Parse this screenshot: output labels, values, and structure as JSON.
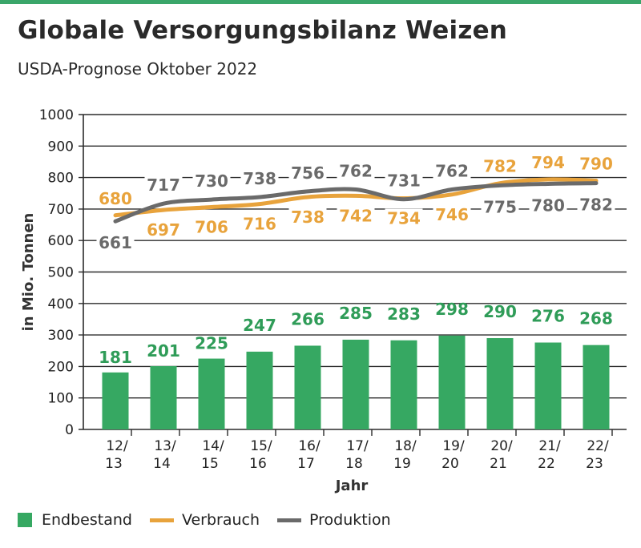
{
  "title": "Globale Versorgungsbilanz Weizen",
  "subtitle": "USDA-Prognose Oktober 2022",
  "colors": {
    "bar": "#36a862",
    "bar_label": "#2f9c58",
    "verbrauch": "#e8a33c",
    "produktion": "#6a6a6a",
    "accent": "#3aa66a"
  },
  "legend": [
    {
      "label": "Endbestand",
      "series": "endbestand",
      "kind": "bar"
    },
    {
      "label": "Verbrauch",
      "series": "verbrauch",
      "kind": "line"
    },
    {
      "label": "Produktion",
      "series": "produktion",
      "kind": "line"
    }
  ],
  "chart_data": {
    "type": "bar+line",
    "xlabel": "Jahr",
    "ylabel": "in Mio. Tonnen",
    "ylim": [
      0,
      1000
    ],
    "yticks": [
      0,
      100,
      200,
      300,
      400,
      500,
      600,
      700,
      800,
      900,
      1000
    ],
    "categories": [
      [
        "12/",
        "13"
      ],
      [
        "13/",
        "14"
      ],
      [
        "14/",
        "15"
      ],
      [
        "15/",
        "16"
      ],
      [
        "16/",
        "17"
      ],
      [
        "17/",
        "18"
      ],
      [
        "18/",
        "19"
      ],
      [
        "19/",
        "20"
      ],
      [
        "20/",
        "21"
      ],
      [
        "21/",
        "22"
      ],
      [
        "22/",
        "23"
      ]
    ],
    "grid": "horizontal",
    "legend_position": "bottom",
    "series": [
      {
        "name": "Endbestand",
        "key": "endbestand",
        "kind": "bar",
        "values": [
          181,
          201,
          225,
          247,
          266,
          285,
          283,
          298,
          290,
          276,
          268
        ]
      },
      {
        "name": "Verbrauch",
        "key": "verbrauch",
        "kind": "line",
        "values": [
          680,
          697,
          706,
          716,
          738,
          742,
          734,
          746,
          782,
          794,
          790
        ]
      },
      {
        "name": "Produktion",
        "key": "produktion",
        "kind": "line",
        "values": [
          661,
          717,
          730,
          738,
          756,
          762,
          731,
          762,
          775,
          780,
          782
        ]
      }
    ]
  }
}
